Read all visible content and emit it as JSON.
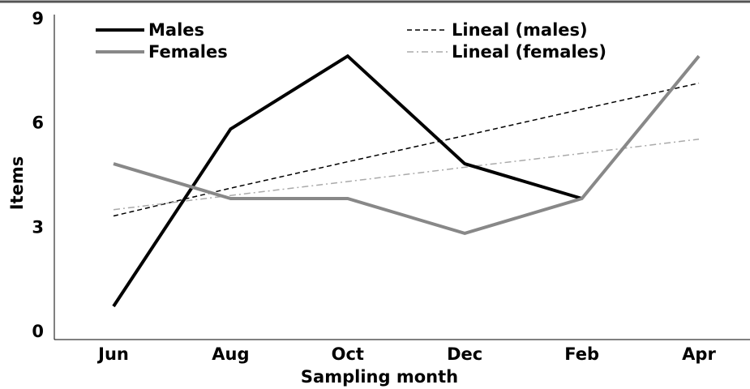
{
  "chart_data": {
    "type": "line",
    "xlabel": "Sampling month",
    "ylabel": "Items",
    "categories": [
      "Jun",
      "Aug",
      "Oct",
      "Dec",
      "Feb",
      "Apr"
    ],
    "ylim": [
      0,
      9
    ],
    "yticks": [
      "0",
      "3",
      "6",
      "9"
    ],
    "grid": false,
    "legend_position": "top",
    "series": [
      {
        "name": "Males",
        "values": [
          0.7,
          5.8,
          7.9,
          4.8,
          3.8,
          null
        ],
        "color": "#000000",
        "style": "solid"
      },
      {
        "name": "Females",
        "values": [
          4.8,
          3.8,
          3.8,
          2.8,
          3.8,
          7.9
        ],
        "color": "#888888",
        "style": "solid"
      },
      {
        "name": "Lineal (males)",
        "values": [
          3.3,
          4.1,
          4.86,
          5.61,
          6.37,
          7.12
        ],
        "color": "#000000",
        "style": "dashed",
        "trendline_of": "Males"
      },
      {
        "name": "Lineal (females)",
        "values": [
          3.48,
          3.89,
          4.29,
          4.7,
          5.1,
          5.51
        ],
        "color": "#aaaaaa",
        "style": "dashdot",
        "trendline_of": "Females"
      }
    ]
  }
}
